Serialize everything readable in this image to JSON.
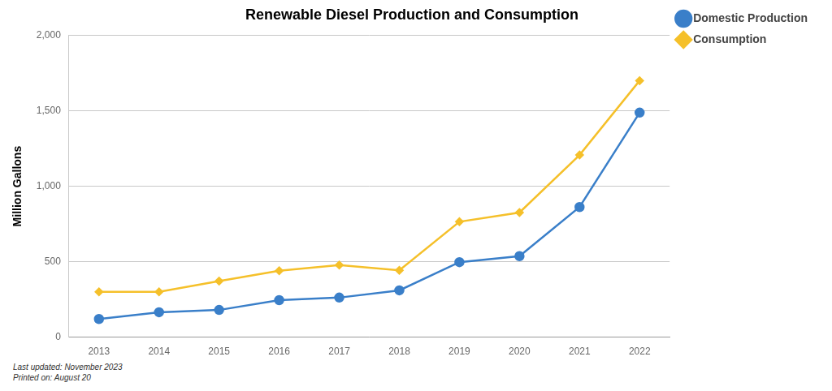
{
  "chart_data": {
    "type": "line",
    "title": "Renewable Diesel Production and Consumption",
    "y_label": "Million Gallons",
    "categories": [
      "2013",
      "2014",
      "2015",
      "2016",
      "2017",
      "2018",
      "2019",
      "2020",
      "2021",
      "2022"
    ],
    "series": [
      {
        "name": "Domestic Production",
        "color": "#3a7fc9",
        "marker": "circle",
        "line_style": "solid",
        "values": [
          120,
          165,
          180,
          245,
          262,
          310,
          497,
          537,
          862,
          1488
        ]
      },
      {
        "name": "Consumption",
        "color": "#f5c02a",
        "marker": "diamond",
        "line_style": "solid",
        "values": [
          300,
          300,
          372,
          440,
          478,
          443,
          765,
          826,
          1207,
          1700
        ]
      }
    ],
    "ylim": [
      0,
      2000
    ],
    "yticks": [
      0,
      500,
      {
        "value": 1000,
        "label": "1,000"
      },
      {
        "value": 1500,
        "label": "1,500"
      },
      {
        "value": 2000,
        "label": "2,000"
      }
    ],
    "grid": true,
    "legend": "right",
    "annotations": [
      "Last updated: November 2023",
      "Printed on: August 20"
    ]
  }
}
